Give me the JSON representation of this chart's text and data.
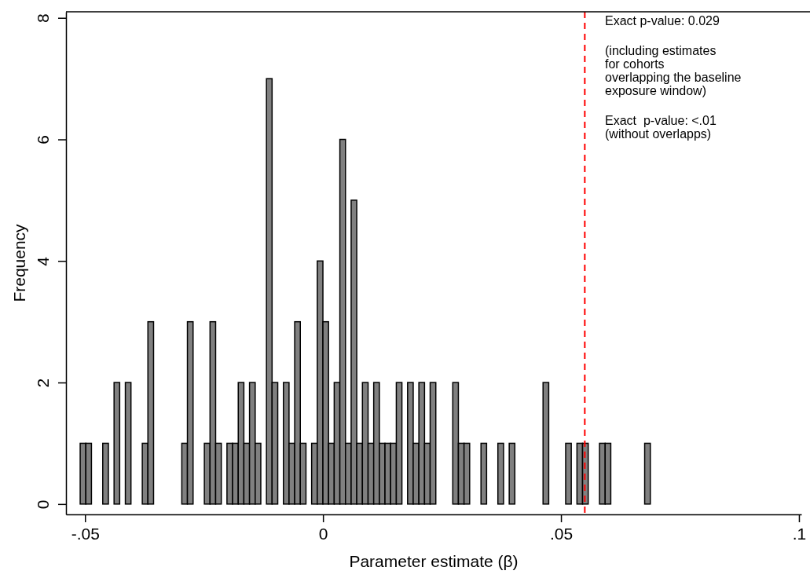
{
  "chart_data": {
    "type": "histogram",
    "xlabel": "Parameter estimate (β)",
    "ylabel": "Frequency",
    "bins": [
      -0.05102,
      -0.04983,
      -0.04865,
      -0.04746,
      -0.04628,
      -0.04509,
      -0.0439,
      -0.04272,
      -0.04153,
      -0.04035,
      -0.03916,
      -0.03797,
      -0.03679,
      -0.0356,
      -0.03442,
      -0.03323,
      -0.03204,
      -0.03086,
      -0.02967,
      -0.02849,
      -0.0273,
      -0.02611,
      -0.02493,
      -0.02374,
      -0.02256,
      -0.02137,
      -0.02018,
      -0.019,
      -0.01781,
      -0.01663,
      -0.01544,
      -0.01425,
      -0.01307,
      -0.01188,
      -0.0107,
      -0.00951,
      -0.00832,
      -0.00714,
      -0.00595,
      -0.00477,
      -0.00358,
      -0.00239,
      -0.00121,
      -2e-05,
      0.00116,
      0.00235,
      0.00354,
      0.00472,
      0.00591,
      0.00709,
      0.00828,
      0.00947,
      0.01065,
      0.01184,
      0.01302,
      0.01421,
      0.0154,
      0.01658,
      0.01777,
      0.01895,
      0.02014,
      0.02133,
      0.02251,
      0.0237,
      0.02488,
      0.02607,
      0.02726,
      0.02844,
      0.02963,
      0.03081,
      0.032,
      0.03319,
      0.03437,
      0.03556,
      0.03674,
      0.03793,
      0.03912,
      0.0403,
      0.04149,
      0.04267,
      0.04386,
      0.04505,
      0.04623,
      0.04742,
      0.0486,
      0.04979,
      0.05098,
      0.05216,
      0.05335,
      0.05453,
      0.05572,
      0.05691,
      0.05809,
      0.05928,
      0.06046,
      0.06165,
      0.06284,
      0.06402,
      0.06521,
      0.06639,
      0.06758,
      0.06877
    ],
    "values": [
      1,
      1,
      0,
      0,
      1,
      0,
      2,
      0,
      2,
      0,
      0,
      1,
      3,
      0,
      0,
      0,
      0,
      0,
      1,
      3,
      0,
      0,
      1,
      3,
      1,
      0,
      1,
      1,
      2,
      1,
      2,
      1,
      0,
      7,
      2,
      0,
      2,
      1,
      3,
      1,
      0,
      1,
      4,
      3,
      1,
      2,
      6,
      1,
      5,
      1,
      2,
      1,
      2,
      1,
      1,
      1,
      2,
      0,
      2,
      1,
      2,
      1,
      2,
      0,
      0,
      0,
      2,
      1,
      1,
      0,
      0,
      1,
      0,
      0,
      1,
      0,
      1,
      0,
      0,
      0,
      0,
      0,
      2,
      0,
      0,
      0,
      1,
      0,
      1,
      1,
      0,
      0,
      1,
      1,
      0,
      0,
      0,
      0,
      0,
      0,
      1
    ],
    "color": "#808080",
    "xlim": [
      -0.054,
      0.1005
    ],
    "xticks": [
      {
        "value": -0.05,
        "label": "-.05"
      },
      0,
      {
        "value": 0.05,
        "label": ".05"
      },
      {
        "value": 0.1,
        "label": ".1"
      }
    ],
    "ylim": [
      -0.17,
      8.1
    ],
    "yticks": [
      0,
      2,
      4,
      6,
      8
    ],
    "grid": false,
    "ref_lines": [
      {
        "axis": "x",
        "value": 0.055,
        "color": "#ff0000",
        "line_style": "dashed"
      }
    ],
    "annotations": [
      "Exact p-value: 0.029",
      "(including estimates\nfor cohorts\noverlapping the baseline\nexposure window)",
      "Exact  p-value: <.01\n(without overlapps)"
    ]
  }
}
